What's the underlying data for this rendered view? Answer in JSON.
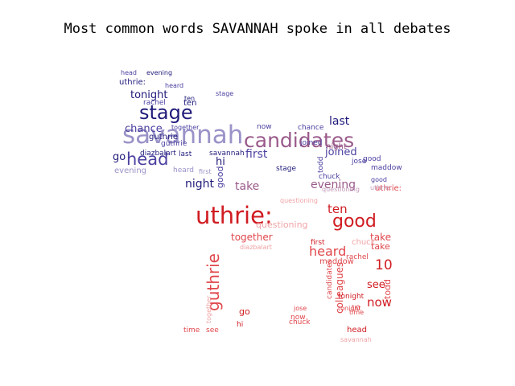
{
  "title": "Most common words SAVANNAH spoke in all debates",
  "palette": {
    "blue_dark": "#1f1a7a",
    "blue_mid": "#4b40a0",
    "blue_light": "#9a93c8",
    "mauve": "#9a5a8a",
    "mauve_light": "#c19ab8",
    "red_dark": "#d01c22",
    "red_mid": "#e0474c",
    "red_light": "#f0a3a5"
  },
  "words": [
    {
      "text": "savannah",
      "color": "blue_light"
    },
    {
      "text": "candidates",
      "color": "mauve"
    },
    {
      "text": "stage",
      "color": "blue_dark"
    },
    {
      "text": "head",
      "color": "blue_mid"
    },
    {
      "text": "tonight",
      "color": "blue_dark"
    },
    {
      "text": "chance",
      "color": "blue_mid"
    },
    {
      "text": "go",
      "color": "blue_dark"
    },
    {
      "text": "hi",
      "color": "blue_dark"
    },
    {
      "text": "first",
      "color": "blue_mid"
    },
    {
      "text": "last",
      "color": "blue_dark"
    },
    {
      "text": "joined",
      "color": "blue_mid"
    },
    {
      "text": "night",
      "color": "blue_dark"
    },
    {
      "text": "evening",
      "color": "mauve"
    },
    {
      "text": "night",
      "color": "mauve"
    },
    {
      "text": "take",
      "color": "mauve"
    },
    {
      "text": "good",
      "color": "blue_mid"
    },
    {
      "text": "uthrie:",
      "color": "blue_dark"
    },
    {
      "text": "guthrie",
      "color": "blue_dark"
    },
    {
      "text": "ten",
      "color": "blue_dark"
    },
    {
      "text": "rachel",
      "color": "blue_mid"
    },
    {
      "text": "evening",
      "color": "blue_light"
    },
    {
      "text": "heard",
      "color": "blue_light"
    },
    {
      "text": "last",
      "color": "blue_dark"
    },
    {
      "text": "savannah",
      "color": "blue_dark"
    },
    {
      "text": "diazbalart",
      "color": "blue_dark"
    },
    {
      "text": "stage",
      "color": "blue_dark"
    },
    {
      "text": "chuck",
      "color": "blue_mid"
    },
    {
      "text": "todd",
      "color": "blue_mid"
    },
    {
      "text": "maddow",
      "color": "blue_mid"
    },
    {
      "text": "jose",
      "color": "blue_mid"
    },
    {
      "text": "questioning",
      "color": "mauve_light"
    },
    {
      "text": "uthrie:",
      "color": "red_dark"
    },
    {
      "text": "good",
      "color": "red_dark"
    },
    {
      "text": "guthrie",
      "color": "red_mid"
    },
    {
      "text": "heard",
      "color": "red_mid"
    },
    {
      "text": "ten",
      "color": "red_dark"
    },
    {
      "text": "together",
      "color": "red_mid"
    },
    {
      "text": "10",
      "color": "red_dark"
    },
    {
      "text": "now",
      "color": "red_dark"
    },
    {
      "text": "see",
      "color": "red_dark"
    },
    {
      "text": "take",
      "color": "red_mid"
    },
    {
      "text": "chuck",
      "color": "red_light"
    },
    {
      "text": "maddow",
      "color": "red_mid"
    },
    {
      "text": "rachel",
      "color": "red_mid"
    },
    {
      "text": "first",
      "color": "red_dark"
    },
    {
      "text": "colleagues",
      "color": "red_mid"
    },
    {
      "text": "candidates",
      "color": "red_mid"
    },
    {
      "text": "todd",
      "color": "red_mid"
    },
    {
      "text": "tonight",
      "color": "red_mid"
    },
    {
      "text": "head",
      "color": "red_dark"
    },
    {
      "text": "diazbalart",
      "color": "red_light"
    },
    {
      "text": "go",
      "color": "red_dark"
    },
    {
      "text": "hi",
      "color": "red_dark"
    },
    {
      "text": "time",
      "color": "red_mid"
    },
    {
      "text": "see",
      "color": "red_mid"
    },
    {
      "text": "jose",
      "color": "red_mid"
    },
    {
      "text": "savannah",
      "color": "red_light"
    },
    {
      "text": "questioning",
      "color": "red_light"
    },
    {
      "text": "together",
      "color": "red_light"
    },
    {
      "text": "now",
      "color": "red_mid"
    },
    {
      "text": "chance",
      "color": "blue_mid"
    },
    {
      "text": "together",
      "color": "blue_mid"
    },
    {
      "text": "evening",
      "color": "blue_dark"
    },
    {
      "text": "ten",
      "color": "blue_dark"
    },
    {
      "text": "heard",
      "color": "blue_mid"
    },
    {
      "text": "10",
      "color": "red_mid"
    },
    {
      "text": "tonight",
      "color": "red_dark"
    },
    {
      "text": "take",
      "color": "red_mid"
    },
    {
      "text": "guthrie",
      "color": "blue_mid"
    },
    {
      "text": "stage",
      "color": "blue_mid"
    },
    {
      "text": "head",
      "color": "blue_mid"
    },
    {
      "text": "uthrie:",
      "color": "red_mid"
    },
    {
      "text": "time",
      "color": "red_mid"
    },
    {
      "text": "chuck",
      "color": "red_mid"
    },
    {
      "text": "good",
      "color": "blue_mid"
    },
    {
      "text": "uthrie:",
      "color": "mauve_light"
    },
    {
      "text": "questioning",
      "color": "red_light"
    },
    {
      "text": "first",
      "color": "blue_light"
    },
    {
      "text": "now",
      "color": "blue_mid"
    },
    {
      "text": "joined",
      "color": "blue_mid"
    },
    {
      "text": "good",
      "color": "blue_mid"
    }
  ]
}
